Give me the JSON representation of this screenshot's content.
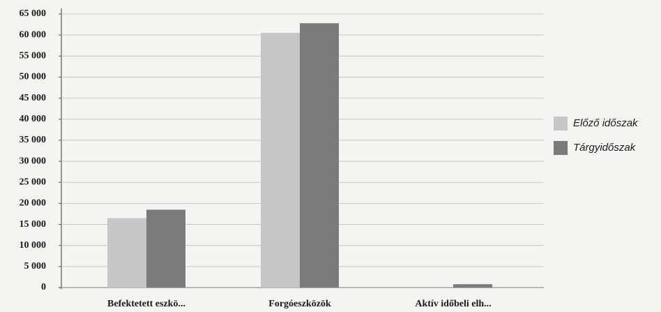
{
  "chart_data": {
    "type": "bar",
    "categories": [
      "Befektetett eszkö...",
      "Forgóeszközök",
      "Aktív időbeli elh..."
    ],
    "series": [
      {
        "name": "Előző időszak",
        "color": "#c6c6c6",
        "values": [
          16500,
          60500,
          0
        ]
      },
      {
        "name": "Tárgyidőszak",
        "color": "#7b7b7b",
        "values": [
          18500,
          62800,
          800
        ]
      }
    ],
    "ylim": [
      0,
      65000
    ],
    "yticks": [
      {
        "value": 0,
        "label": "0"
      },
      {
        "value": 5000,
        "label": "5 000"
      },
      {
        "value": 10000,
        "label": "10 000"
      },
      {
        "value": 15000,
        "label": "15 000"
      },
      {
        "value": 20000,
        "label": "20 000"
      },
      {
        "value": 25000,
        "label": "25 000"
      },
      {
        "value": 30000,
        "label": "30 000"
      },
      {
        "value": 35000,
        "label": "35 000"
      },
      {
        "value": 40000,
        "label": "40 000"
      },
      {
        "value": 45000,
        "label": "45 000"
      },
      {
        "value": 50000,
        "label": "50 000"
      },
      {
        "value": 55000,
        "label": "55 000"
      },
      {
        "value": 60000,
        "label": "60 000"
      },
      {
        "value": 65000,
        "label": "65 000"
      }
    ],
    "grid": true,
    "legend": "right"
  }
}
